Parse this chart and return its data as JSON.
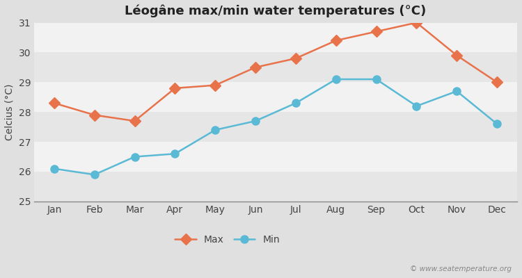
{
  "title": "Léogâne max/min water temperatures (°C)",
  "ylabel": "Celcius (°C)",
  "months": [
    "Jan",
    "Feb",
    "Mar",
    "Apr",
    "May",
    "Jun",
    "Jul",
    "Aug",
    "Sep",
    "Oct",
    "Nov",
    "Dec"
  ],
  "max_temps": [
    28.3,
    27.9,
    27.7,
    28.8,
    28.9,
    29.5,
    29.8,
    30.4,
    30.7,
    31.0,
    29.9,
    29.0
  ],
  "min_temps": [
    26.1,
    25.9,
    26.5,
    26.6,
    27.4,
    27.7,
    28.3,
    29.1,
    29.1,
    28.2,
    28.7,
    27.6
  ],
  "max_color": "#e8724a",
  "min_color": "#5ab9d4",
  "outer_bg": "#e0e0e0",
  "band_light": "#f2f2f2",
  "band_dark": "#e6e6e6",
  "ylim": [
    25,
    31
  ],
  "yticks": [
    25,
    26,
    27,
    28,
    29,
    30,
    31
  ],
  "legend_labels": [
    "Max",
    "Min"
  ],
  "watermark": "© www.seatemperature.org",
  "title_fontsize": 13,
  "label_fontsize": 10,
  "tick_fontsize": 10,
  "legend_fontsize": 10
}
